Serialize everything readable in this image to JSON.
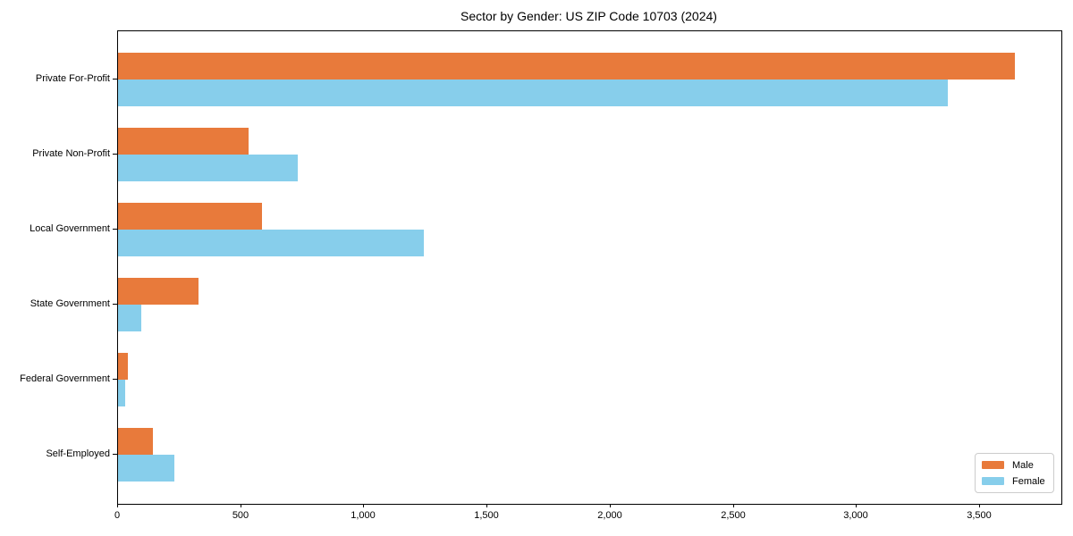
{
  "title": "Sector by Gender: US ZIP Code 10703 (2024)",
  "chart_data": {
    "type": "bar",
    "orientation": "horizontal",
    "title": "Sector by Gender: US ZIP Code 10703 (2024)",
    "categories": [
      "Private For-Profit",
      "Private Non-Profit",
      "Local Government",
      "State Government",
      "Federal Government",
      "Self-Employed"
    ],
    "series": [
      {
        "name": "Male",
        "color": "#E87A3B",
        "values": [
          3640,
          530,
          585,
          325,
          40,
          140
        ]
      },
      {
        "name": "Female",
        "color": "#87CEEB",
        "values": [
          3370,
          730,
          1240,
          95,
          30,
          230
        ]
      }
    ],
    "xlabel": "",
    "ylabel": "",
    "xlim": [
      0,
      3830
    ],
    "x_ticks": [
      0,
      500,
      1000,
      1500,
      2000,
      2500,
      3000,
      3500
    ],
    "x_tick_labels": [
      "0",
      "500",
      "1,000",
      "1,500",
      "2,000",
      "2,500",
      "3,000",
      "3,500"
    ],
    "grid": false,
    "legend": {
      "position": "lower right",
      "entries": [
        "Male",
        "Female"
      ]
    }
  }
}
